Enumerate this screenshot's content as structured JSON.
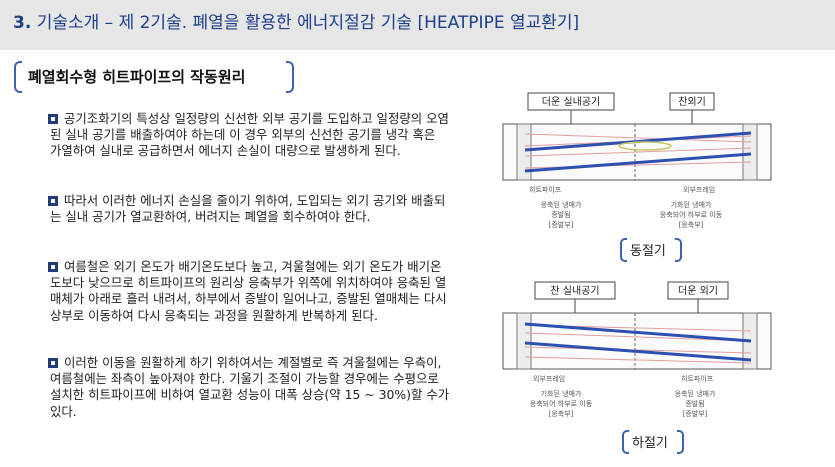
{
  "header": {
    "number": "3.",
    "title": "기술소개 – 제 2기술. 폐열을 활용한 에너지절감 기술 [HEATPIPE 열교환기]"
  },
  "section": {
    "title": "폐열회수형 히트파이프의 작동원리"
  },
  "paragraphs": [
    "공기조화기의 특성상 일정량의 신선한 외부 공기를 도입하고 일정량의 오염된 실내 공기를 배출하여야 하는데 이 경우 외부의 신선한 공기를 냉각 혹은 가열하여 실내로 공급하면서 에너지 손실이 대량으로 발생하게 된다.",
    "따라서 이러한 에너지 손실을 줄이기 위하여, 도입되는 외기 공기와 배출되는 실내 공기가 열교환하여, 버려지는 폐열을 회수하여야 한다.",
    "여름철은 외기 온도가 배기온도보다 높고, 겨울철에는 외기 온도가 배기온도보다 낮으므로 히트파이프의 원리상 응축부가 위쪽에 위치하여야 응축된 열매체가 아래로 흘러 내려서, 하부에서 증발이 일어나고, 증발된 열매체는 다시 상부로 이동하여 다시 응축되는 과정을 원활하게 반복하게 된다.",
    "이러한 이동을 원활하게 하기 위하여서는 계절별로 즉 겨울철에는 우측이, 여름철에는 좌측이 높아져야 한다. 기울기 조절이 가능할 경우에는 수평으로 설치한 히트파이프에 비하여 열교환 성능이 대폭 상승(약 15 ~ 30%)할 수가 있다."
  ],
  "winter": {
    "label_left": "더운 실내공기",
    "label_right": "찬외기",
    "tag_left": "히트파이프",
    "tag_right": "외부프레임",
    "note_left": [
      "응축된 냉매가",
      "증발됨",
      "[증발부]"
    ],
    "note_right": [
      "기화된 냉매가",
      "응축되어 하부로 이동",
      "[응축부]"
    ],
    "caption": "동절기"
  },
  "summer": {
    "label_left": "찬 실내공기",
    "label_right": "더운 외기",
    "tag_left": "외부프레임",
    "tag_right": "히트파이프",
    "note_left": [
      "기화된 냉매가",
      "응축되어 하부로 이동",
      "[응축부]"
    ],
    "note_right": [
      "응축된 냉매가",
      "증발됨",
      "[증발부]"
    ],
    "caption": "하절기"
  }
}
